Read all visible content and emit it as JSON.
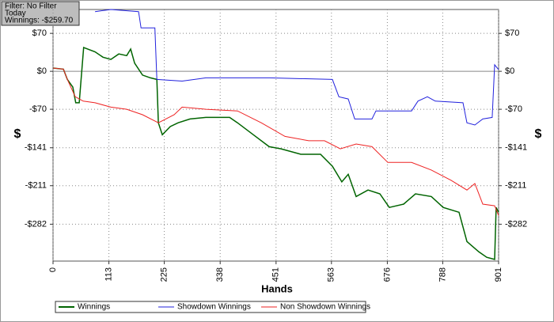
{
  "chart_data": {
    "type": "line",
    "info": [
      "Filter: No Filter",
      "Today",
      "Winnings: -$259.70"
    ],
    "xlabel": "Hands",
    "ylabel": "$",
    "xlim": [
      0,
      901
    ],
    "xticks": [
      0,
      113,
      225,
      338,
      451,
      563,
      676,
      788,
      901
    ],
    "ylim": [
      -350,
      114
    ],
    "yticks": [
      {
        "value": 70,
        "label": "$70"
      },
      {
        "value": 0,
        "label": "$0"
      },
      {
        "value": -70,
        "label": "-$70"
      },
      {
        "value": -141,
        "label": "-$141"
      },
      {
        "value": -211,
        "label": "-$211"
      },
      {
        "value": -282,
        "label": "-$282"
      }
    ],
    "grid": true,
    "series": [
      {
        "name": "Winnings",
        "color": "#006400",
        "x": [
          0,
          21,
          29,
          40,
          46,
          53,
          62,
          85,
          101,
          117,
          133,
          149,
          157,
          165,
          181,
          197,
          210,
          213,
          221,
          237,
          253,
          277,
          309,
          357,
          373,
          405,
          437,
          461,
          501,
          541,
          565,
          584,
          597,
          613,
          637,
          661,
          680,
          709,
          733,
          765,
          789,
          821,
          837,
          861,
          877,
          893,
          896,
          901
        ],
        "values": [
          6,
          4,
          -15,
          -29,
          -58,
          -58,
          44,
          36,
          26,
          22,
          32,
          29,
          41,
          15,
          -7,
          -12,
          -15,
          -95,
          -117,
          -102,
          -95,
          -88,
          -85,
          -85,
          -95,
          -117,
          -139,
          -143,
          -153,
          -153,
          -175,
          -204,
          -190,
          -231,
          -219,
          -226,
          -251,
          -245,
          -226,
          -231,
          -251,
          -260,
          -314,
          -333,
          -343,
          -347,
          -251,
          -260
        ]
      },
      {
        "name": "Showdown Winnings",
        "color": "#2222dd",
        "x": [
          85,
          117,
          173,
          178,
          206,
          210,
          261,
          309,
          437,
          565,
          578,
          597,
          610,
          645,
          653,
          725,
          738,
          757,
          773,
          829,
          837,
          853,
          869,
          888,
          893,
          901
        ],
        "values": [
          110,
          114,
          110,
          80,
          80,
          -15,
          -18,
          -12,
          -12,
          -15,
          -47,
          -51,
          -88,
          -88,
          -73,
          -73,
          -55,
          -47,
          -55,
          -58,
          -95,
          -99,
          -88,
          -85,
          12,
          3
        ]
      },
      {
        "name": "Non Showdown Winnings",
        "color": "#ee2222",
        "x": [
          0,
          21,
          29,
          45,
          61,
          85,
          117,
          149,
          181,
          213,
          245,
          261,
          309,
          373,
          421,
          469,
          517,
          549,
          581,
          613,
          645,
          677,
          725,
          765,
          805,
          837,
          853,
          869,
          893,
          901
        ],
        "values": [
          6,
          4,
          -15,
          -47,
          -55,
          -58,
          -66,
          -70,
          -80,
          -95,
          -80,
          -66,
          -70,
          -73,
          -95,
          -120,
          -128,
          -128,
          -143,
          -134,
          -139,
          -168,
          -168,
          -182,
          -201,
          -219,
          -207,
          -245,
          -248,
          -266
        ]
      }
    ]
  }
}
